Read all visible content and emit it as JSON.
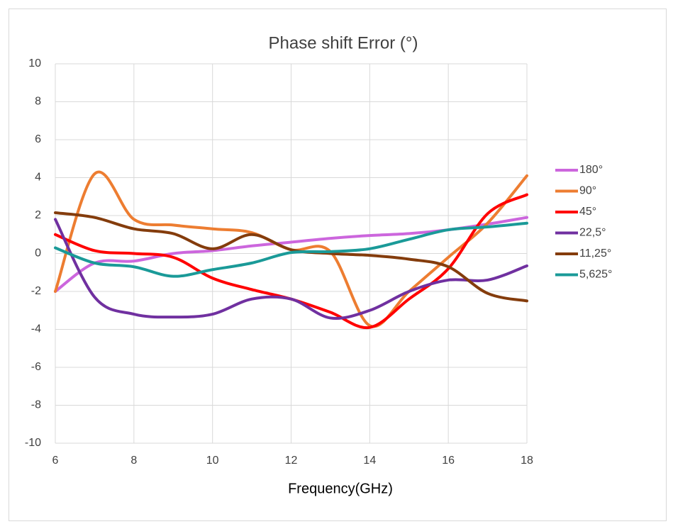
{
  "chart_data": {
    "type": "line",
    "title": "Phase shift Error (°)",
    "x_label": "Frequency(GHz)",
    "x": [
      6,
      7,
      8,
      9,
      10,
      11,
      12,
      13,
      14,
      15,
      16,
      17,
      18
    ],
    "series": [
      {
        "name": "180°",
        "color": "#cc66dd",
        "values": [
          -2,
          -0.5,
          -0.4,
          0.0,
          0.15,
          0.4,
          0.6,
          0.8,
          0.95,
          1.05,
          1.25,
          1.55,
          1.9
        ]
      },
      {
        "name": "90°",
        "color": "#ed7d31",
        "values": [
          -2,
          4.2,
          1.8,
          1.5,
          1.3,
          1.1,
          0.2,
          0.1,
          -3.8,
          -2.0,
          -0.2,
          1.6,
          4.1
        ]
      },
      {
        "name": "45°",
        "color": "#ff0000",
        "values": [
          1.0,
          0.15,
          0.0,
          -0.2,
          -1.3,
          -1.9,
          -2.4,
          -3.1,
          -3.9,
          -2.4,
          -0.8,
          2.1,
          3.1
        ]
      },
      {
        "name": "22,5°",
        "color": "#7030a0",
        "values": [
          1.8,
          -2.3,
          -3.2,
          -3.35,
          -3.2,
          -2.4,
          -2.4,
          -3.4,
          -3.0,
          -2.0,
          -1.4,
          -1.4,
          -0.65
        ]
      },
      {
        "name": "11,25°",
        "color": "#843c0c",
        "values": [
          2.15,
          1.9,
          1.3,
          1.05,
          0.25,
          1.0,
          0.2,
          0.0,
          -0.1,
          -0.3,
          -0.7,
          -2.1,
          -2.5
        ]
      },
      {
        "name": "5,625°",
        "color": "#1a9a98",
        "values": [
          0.3,
          -0.5,
          -0.7,
          -1.2,
          -0.85,
          -0.5,
          0.05,
          0.1,
          0.25,
          0.75,
          1.25,
          1.4,
          1.6
        ]
      }
    ],
    "xlim": [
      6,
      18
    ],
    "xticks": [
      6,
      8,
      10,
      12,
      14,
      16,
      18
    ],
    "ylim": [
      -10,
      10
    ],
    "yticks": [
      -10,
      -8,
      -6,
      -4,
      -2,
      0,
      2,
      4,
      6,
      8,
      10
    ],
    "grid": true,
    "legend": "right"
  }
}
